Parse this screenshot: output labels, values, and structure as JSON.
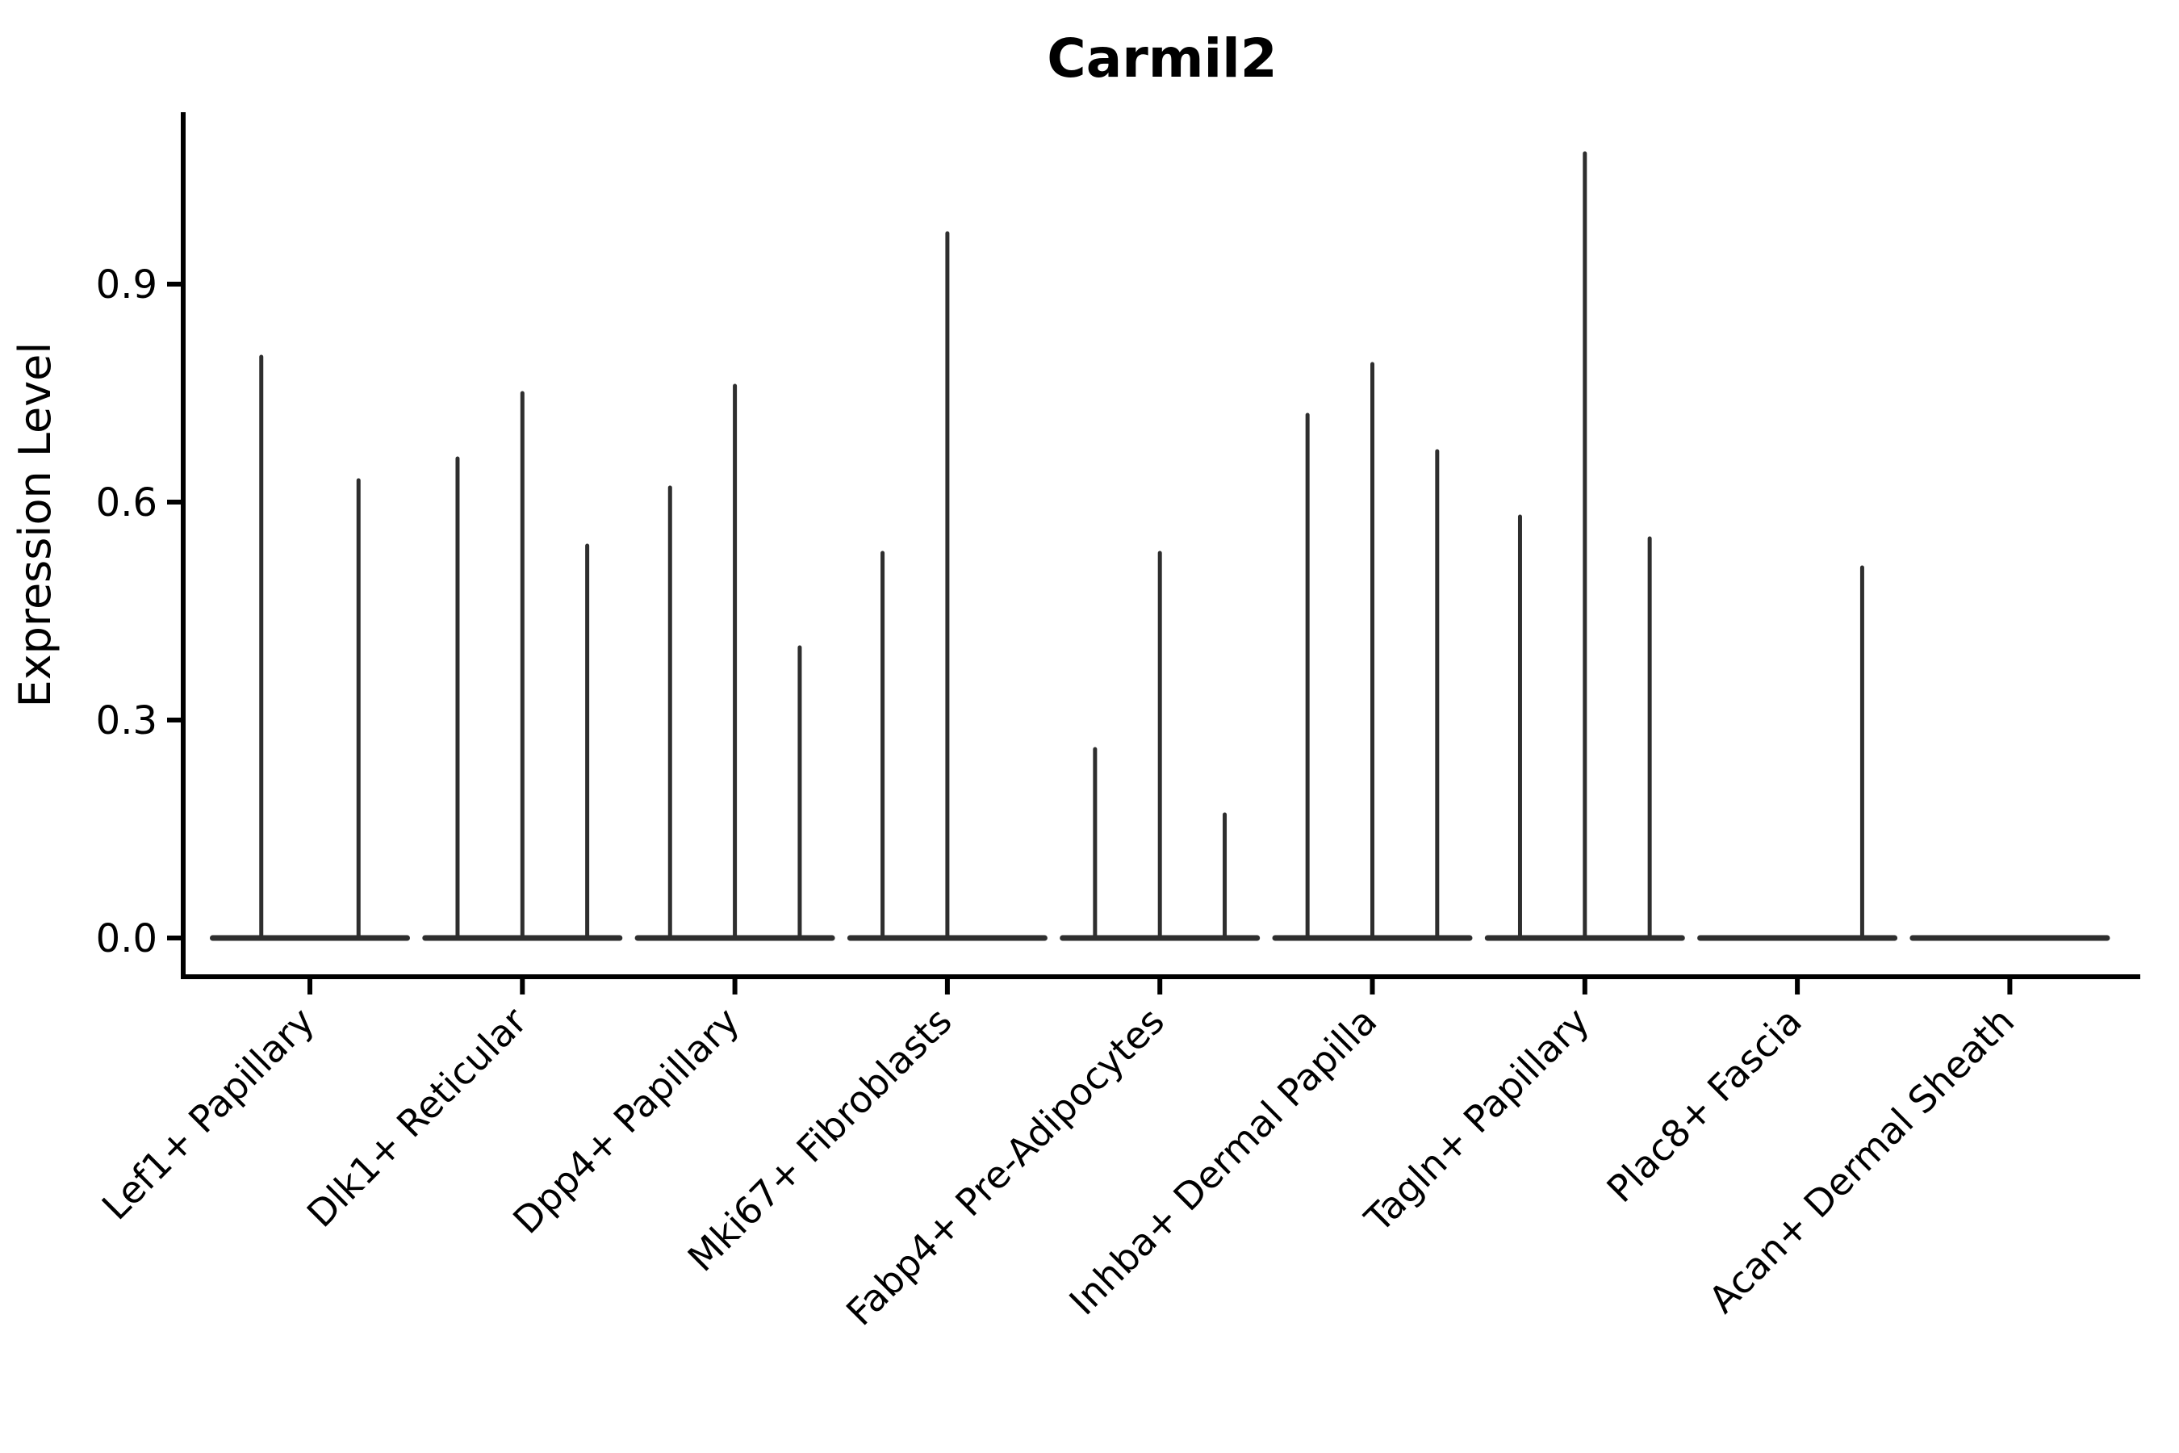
{
  "chart_data": {
    "type": "violin",
    "title": "Carmil2",
    "xlabel": "",
    "ylabel": "Expression Level",
    "y_ticks": [
      "0.0",
      "0.3",
      "0.6",
      "0.9"
    ],
    "y_tick_values": [
      0.0,
      0.3,
      0.6,
      0.9
    ],
    "ylim": [
      -0.05,
      1.14
    ],
    "grid": "off",
    "legend": "none",
    "violin_color": "#2e2e2e",
    "axis_color": "#000000",
    "categories": [
      "Lef1+ Papillary",
      "Dlk1+ Reticular",
      "Dpp4+ Papillary",
      "Mki67+ Fibroblasts",
      "Fabp4+ Pre-Adipocytes",
      "Inhba+ Dermal Papilla",
      "Tagln+ Papillary",
      "Plac8+ Fascia",
      "Acan+ Dermal Sheath"
    ],
    "groups": [
      {
        "category": "Lef1+ Papillary",
        "violin_maxima": [
          0.8,
          0.63
        ]
      },
      {
        "category": "Dlk1+ Reticular",
        "violin_maxima": [
          0.66,
          0.75,
          0.54
        ]
      },
      {
        "category": "Dpp4+ Papillary",
        "violin_maxima": [
          0.62,
          0.76,
          0.4
        ]
      },
      {
        "category": "Mki67+ Fibroblasts",
        "violin_maxima": [
          0.53,
          0.97,
          0
        ]
      },
      {
        "category": "Fabp4+ Pre-Adipocytes",
        "violin_maxima": [
          0.26,
          0.53,
          0.17
        ]
      },
      {
        "category": "Inhba+ Dermal Papilla",
        "violin_maxima": [
          0.72,
          0.79,
          0.67
        ]
      },
      {
        "category": "Tagln+ Papillary",
        "violin_maxima": [
          0.58,
          1.08,
          0.55
        ]
      },
      {
        "category": "Plac8+ Fascia",
        "violin_maxima": [
          0,
          0,
          0.51
        ]
      },
      {
        "category": "Acan+ Dermal Sheath",
        "violin_maxima": [
          0,
          0,
          0
        ]
      }
    ],
    "note_all_violins_have_flat_base_at_zero": true
  }
}
